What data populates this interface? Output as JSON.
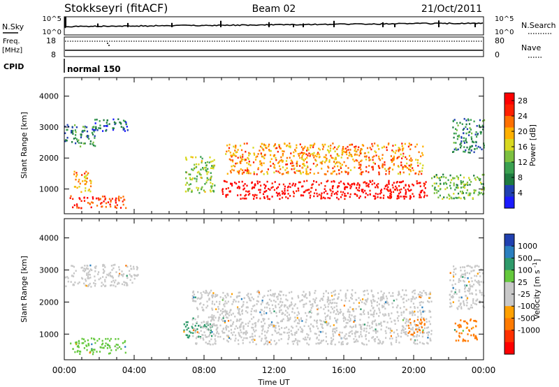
{
  "header": {
    "station": "Stokkseyri (fitACF)",
    "beam": "Beam 02",
    "date": "21/Oct/2011"
  },
  "top_panels": {
    "nsky_label": "N.Sky",
    "nsky_top": "10^5",
    "nsky_bottom": "10^0",
    "nsearch_label": "N.Search",
    "nsearch_top": "10^5",
    "nsearch_bottom": "10^0",
    "freq_label": "Freq.",
    "freq_unit": "[MHz]",
    "freq_top": "18",
    "freq_bottom": "8",
    "nave_label": "Nave",
    "nave_top": "80",
    "nave_bottom": "0",
    "cpid_label": "CPID",
    "cpid_value": "normal 150"
  },
  "colors": {
    "power": [
      "#1a1aff",
      "#2040b0",
      "#1e7a40",
      "#3aa050",
      "#7cc040",
      "#d8d820",
      "#ffb000",
      "#ff7000",
      "#ff2000",
      "#ff0000"
    ],
    "velocity": [
      "#2040b0",
      "#2a7fbf",
      "#2e9a6a",
      "#64c83c",
      "#c8c8c8",
      "#c8c8c8",
      "#ffa000",
      "#ff7a00",
      "#ff3000",
      "#ff0000"
    ]
  },
  "chart_data": [
    {
      "type": "heatmap",
      "name": "power",
      "xlabel": "",
      "ylabel": "Slant Range [km]",
      "x_ticks": [
        "00:00",
        "04:00",
        "08:00",
        "12:00",
        "16:00",
        "20:00",
        "00:00"
      ],
      "y_ticks": [
        1000,
        2000,
        3000,
        4000
      ],
      "ylim": [
        200,
        4600
      ],
      "xlim_hours": [
        0,
        24
      ],
      "colorbar": {
        "label": "Power [dB]",
        "ticks": [
          4,
          8,
          12,
          16,
          20,
          24,
          28
        ],
        "range": [
          0,
          30
        ]
      },
      "regions": [
        {
          "t0": 0.0,
          "t1": 1.8,
          "r0": 2400,
          "r1": 3100,
          "value": 8
        },
        {
          "t0": 1.5,
          "t1": 3.6,
          "r0": 2900,
          "r1": 3300,
          "value": 6
        },
        {
          "t0": 0.3,
          "t1": 3.5,
          "r0": 400,
          "r1": 800,
          "value": 26
        },
        {
          "t0": 0.5,
          "t1": 1.5,
          "r0": 900,
          "r1": 1600,
          "value": 20
        },
        {
          "t0": 6.9,
          "t1": 8.6,
          "r0": 900,
          "r1": 2100,
          "value": 14
        },
        {
          "t0": 9.0,
          "t1": 20.8,
          "r0": 700,
          "r1": 1300,
          "value": 29
        },
        {
          "t0": 9.2,
          "t1": 20.5,
          "r0": 1500,
          "r1": 2500,
          "value": 21
        },
        {
          "t0": 21.0,
          "t1": 24.0,
          "r0": 700,
          "r1": 1500,
          "value": 12
        },
        {
          "t0": 22.2,
          "t1": 24.0,
          "r0": 2200,
          "r1": 3300,
          "value": 8
        }
      ]
    },
    {
      "type": "heatmap",
      "name": "velocity",
      "xlabel": "Time UT",
      "ylabel": "Slant Range [km]",
      "x_ticks": [
        "00:00",
        "04:00",
        "08:00",
        "12:00",
        "16:00",
        "20:00",
        "00:00"
      ],
      "y_ticks": [
        1000,
        2000,
        3000,
        4000
      ],
      "ylim": [
        200,
        4600
      ],
      "xlim_hours": [
        0,
        24
      ],
      "colorbar": {
        "label": "Velocity [m s^-1]",
        "ticks": [
          1000,
          500,
          100,
          25,
          -25,
          -100,
          -500,
          -1000
        ]
      },
      "regions": [
        {
          "t0": 0.0,
          "t1": 4.2,
          "r0": 2500,
          "r1": 3200,
          "value": 0
        },
        {
          "t0": 0.3,
          "t1": 3.5,
          "r0": 400,
          "r1": 900,
          "value": 60
        },
        {
          "t0": 6.8,
          "t1": 8.5,
          "r0": 900,
          "r1": 1400,
          "value": 200
        },
        {
          "t0": 7.3,
          "t1": 21.0,
          "r0": 700,
          "r1": 2400,
          "value": 0
        },
        {
          "t0": 19.6,
          "t1": 20.6,
          "r0": 1000,
          "r1": 1500,
          "value": -600
        },
        {
          "t0": 22.3,
          "t1": 23.6,
          "r0": 800,
          "r1": 1500,
          "value": -700
        },
        {
          "t0": 22.0,
          "t1": 24.0,
          "r0": 1800,
          "r1": 3200,
          "value": 0
        }
      ]
    }
  ]
}
